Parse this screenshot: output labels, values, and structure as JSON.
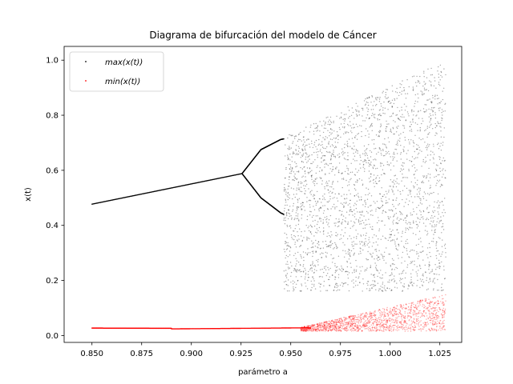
{
  "chart_data": {
    "type": "scatter",
    "title": "Diagrama de bifurcación del modelo de Cáncer",
    "xlabel": "parámetro a",
    "ylabel": "x(t)",
    "xlim": [
      0.836,
      1.036
    ],
    "ylim": [
      -0.025,
      1.05
    ],
    "x_ticks": [
      0.85,
      0.875,
      0.9,
      0.925,
      0.95,
      0.975,
      1.0,
      1.025
    ],
    "x_tick_labels": [
      "0.850",
      "0.875",
      "0.900",
      "0.925",
      "0.950",
      "0.975",
      "1.000",
      "1.025"
    ],
    "y_ticks": [
      0.0,
      0.2,
      0.4,
      0.6,
      0.8,
      1.0
    ],
    "y_tick_labels": [
      "0.0",
      "0.2",
      "0.4",
      "0.6",
      "0.8",
      "1.0"
    ],
    "grid": false,
    "legend_position": "top-left",
    "x_range": [
      0.85,
      1.028
    ],
    "series": [
      {
        "name": "max(x(t))",
        "color": "#000000",
        "branches": [
          {
            "x": [
              0.85,
              0.9255
            ],
            "y": [
              0.477,
              0.588
            ]
          },
          {
            "x": [
              0.9255,
              0.935,
              0.945,
              0.9465
            ],
            "y": [
              0.588,
              0.675,
              0.712,
              0.714
            ]
          },
          {
            "x": [
              0.9255,
              0.935,
              0.945,
              0.9465
            ],
            "y": [
              0.588,
              0.5,
              0.445,
              0.44
            ]
          }
        ],
        "chaotic_band": {
          "x": [
            0.9465,
            1.028
          ],
          "y_min": [
            0.16,
            0.16
          ],
          "y_max": [
            0.72,
            1.0
          ]
        }
      },
      {
        "name": "min(x(t))",
        "color": "#ff0000",
        "branches": [
          {
            "x": [
              0.85,
              0.89
            ],
            "y": [
              0.027,
              0.026
            ]
          },
          {
            "x": [
              0.89,
              0.96
            ],
            "y": [
              0.024,
              0.028
            ]
          }
        ],
        "chaotic_band": {
          "x": [
            0.955,
            1.028
          ],
          "y_min": [
            0.015,
            0.015
          ],
          "y_max": [
            0.03,
            0.15
          ]
        }
      }
    ]
  }
}
